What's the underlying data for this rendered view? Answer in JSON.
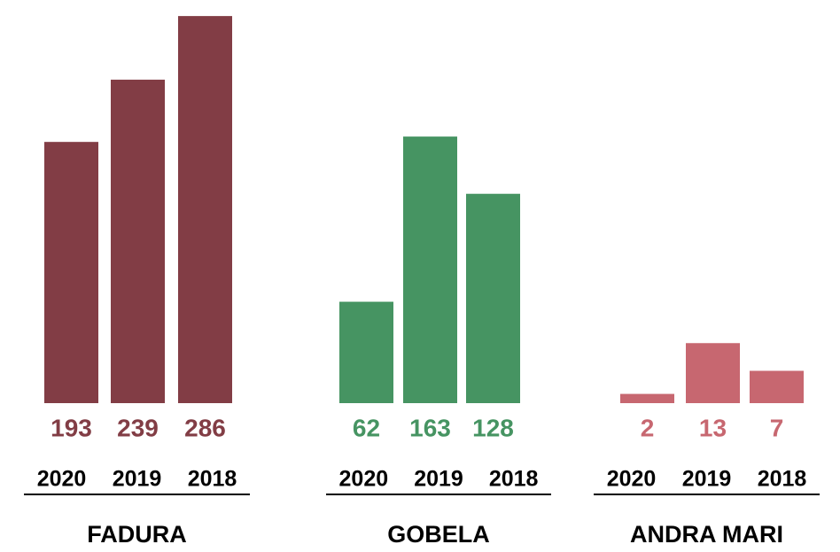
{
  "chart_data": [
    {
      "type": "bar",
      "title": "FADURA",
      "categories": [
        "2020",
        "2019",
        "2018"
      ],
      "values": [
        193,
        239,
        286
      ],
      "color": "#823d45",
      "ylim": [
        0,
        290
      ]
    },
    {
      "type": "bar",
      "title": "GOBELA",
      "categories": [
        "2020",
        "2019",
        "2018"
      ],
      "values": [
        62,
        163,
        128
      ],
      "color": "#469462",
      "ylim": [
        0,
        240
      ]
    },
    {
      "type": "bar",
      "title": "ANDRA MARI",
      "categories": [
        "2020",
        "2019",
        "2018"
      ],
      "values": [
        2,
        13,
        7
      ],
      "color": "#c76770",
      "ylim": [
        0,
        85
      ]
    }
  ]
}
